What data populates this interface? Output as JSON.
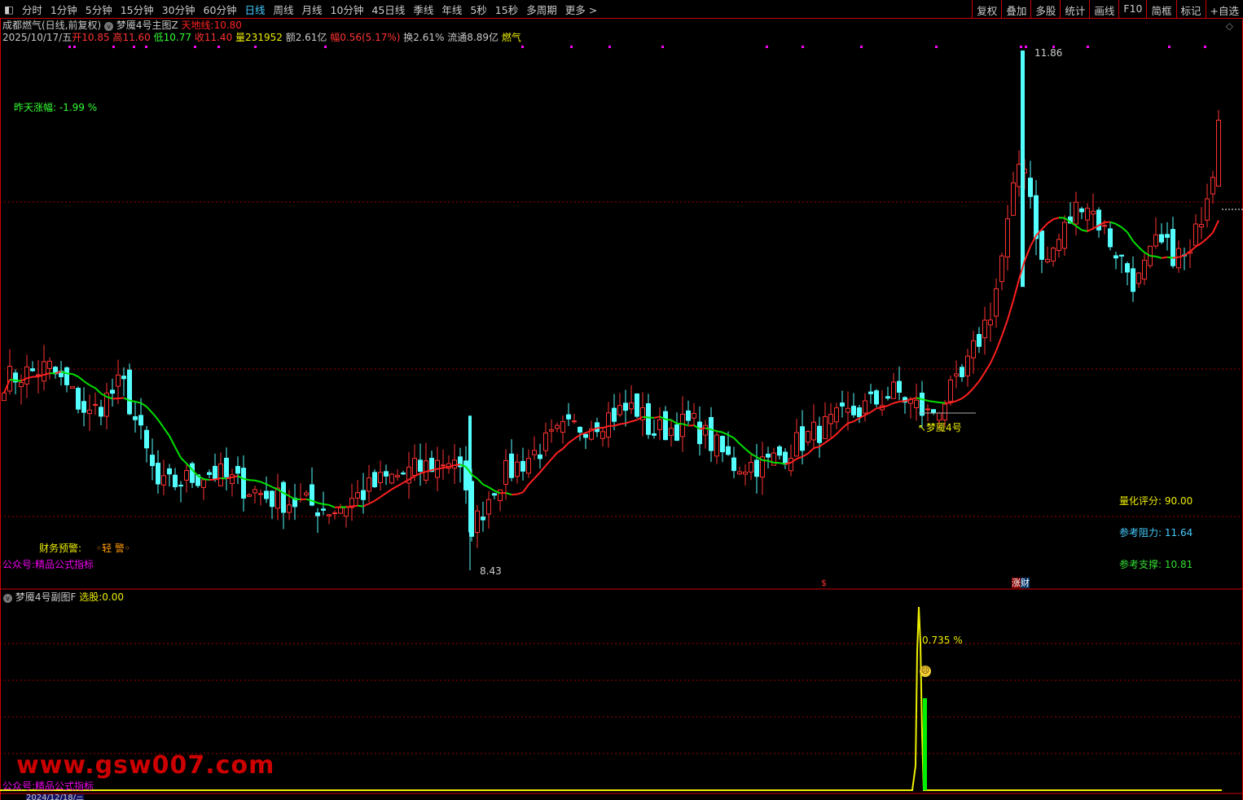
{
  "toolbar": {
    "periods": [
      "分时",
      "1分钟",
      "5分钟",
      "15分钟",
      "30分钟",
      "60分钟",
      "日线",
      "周线",
      "月线",
      "10分钟",
      "45日线",
      "季线",
      "年线",
      "5秒",
      "15秒",
      "多周期",
      "更多 >"
    ],
    "active": "日线",
    "right": [
      "复权",
      "叠加",
      "多股",
      "统计",
      "画线",
      "F10",
      "简框",
      "标记",
      "+自选"
    ]
  },
  "header": {
    "stock": "成都燃气(日线,前复权)",
    "indicator": "梦魇4号主图Z",
    "tiandi_label": "天地线:",
    "tiandi_value": "10.80"
  },
  "quote": {
    "date": "2025/10/17/五",
    "open_l": "开",
    "open": "10.85",
    "high_l": "高",
    "high": "11.60",
    "low_l": "低",
    "low": "10.77",
    "close_l": "收",
    "close": "11.40",
    "vol_l": "量",
    "vol": "231952",
    "amt": "额2.61亿",
    "amp_l": "幅",
    "amp": "0.56(5.17%)",
    "turn": "换2.61%",
    "float": "流通8.89亿",
    "sector": "燃气"
  },
  "main": {
    "yesterday": "昨天涨幅: -1.99 %",
    "max_label": "11.86",
    "min_label": "8.43",
    "signal": "↖梦魇4号",
    "score": "量化评分: 90.00",
    "resist": "参考阻力: 11.64",
    "support": "参考支撑: 10.81",
    "fin_warn": "财务预警:",
    "fin_level": "◦轻 警◦",
    "wechat": "公众号:精品公式指标",
    "badge_zhang": "涨",
    "badge_cai": "财",
    "dollar": "$"
  },
  "sub": {
    "indicator": "梦魇4号副图F",
    "pick_label": "选股:",
    "pick_value": "0.00",
    "pct": "0.735",
    "pct_unit": "%",
    "watermark": "www.gsw007.com",
    "wechat": "公众号:精品公式指标",
    "date_box": "2024/12/18/三"
  },
  "price_keypoints": [
    [
      0,
      9.69
    ],
    [
      55,
      9.77
    ],
    [
      105,
      9.45
    ],
    [
      145,
      9.67
    ],
    [
      190,
      8.97
    ],
    [
      255,
      9.08
    ],
    [
      325,
      8.91
    ],
    [
      405,
      8.83
    ],
    [
      465,
      9.02
    ],
    [
      555,
      9.18
    ],
    [
      575,
      8.7
    ],
    [
      605,
      9.02
    ],
    [
      685,
      9.34
    ],
    [
      775,
      9.51
    ],
    [
      795,
      9.34
    ],
    [
      845,
      9.4
    ],
    [
      895,
      9.13
    ],
    [
      935,
      9.13
    ],
    [
      995,
      9.34
    ],
    [
      1095,
      9.61
    ],
    [
      1135,
      9.45
    ],
    [
      1175,
      9.67
    ],
    [
      1215,
      10.2
    ],
    [
      1250,
      11.23
    ],
    [
      1275,
      10.42
    ],
    [
      1325,
      10.9
    ],
    [
      1355,
      10.63
    ],
    [
      1390,
      10.31
    ],
    [
      1415,
      10.58
    ],
    [
      1455,
      10.47
    ],
    [
      1485,
      11.12
    ],
    [
      1500,
      11.3
    ]
  ],
  "colors": {
    "up": "#ff3232",
    "down": "#54ffff",
    "ma_up": "#ff2020",
    "ma_down": "#00e000",
    "grid": "#a00000"
  }
}
